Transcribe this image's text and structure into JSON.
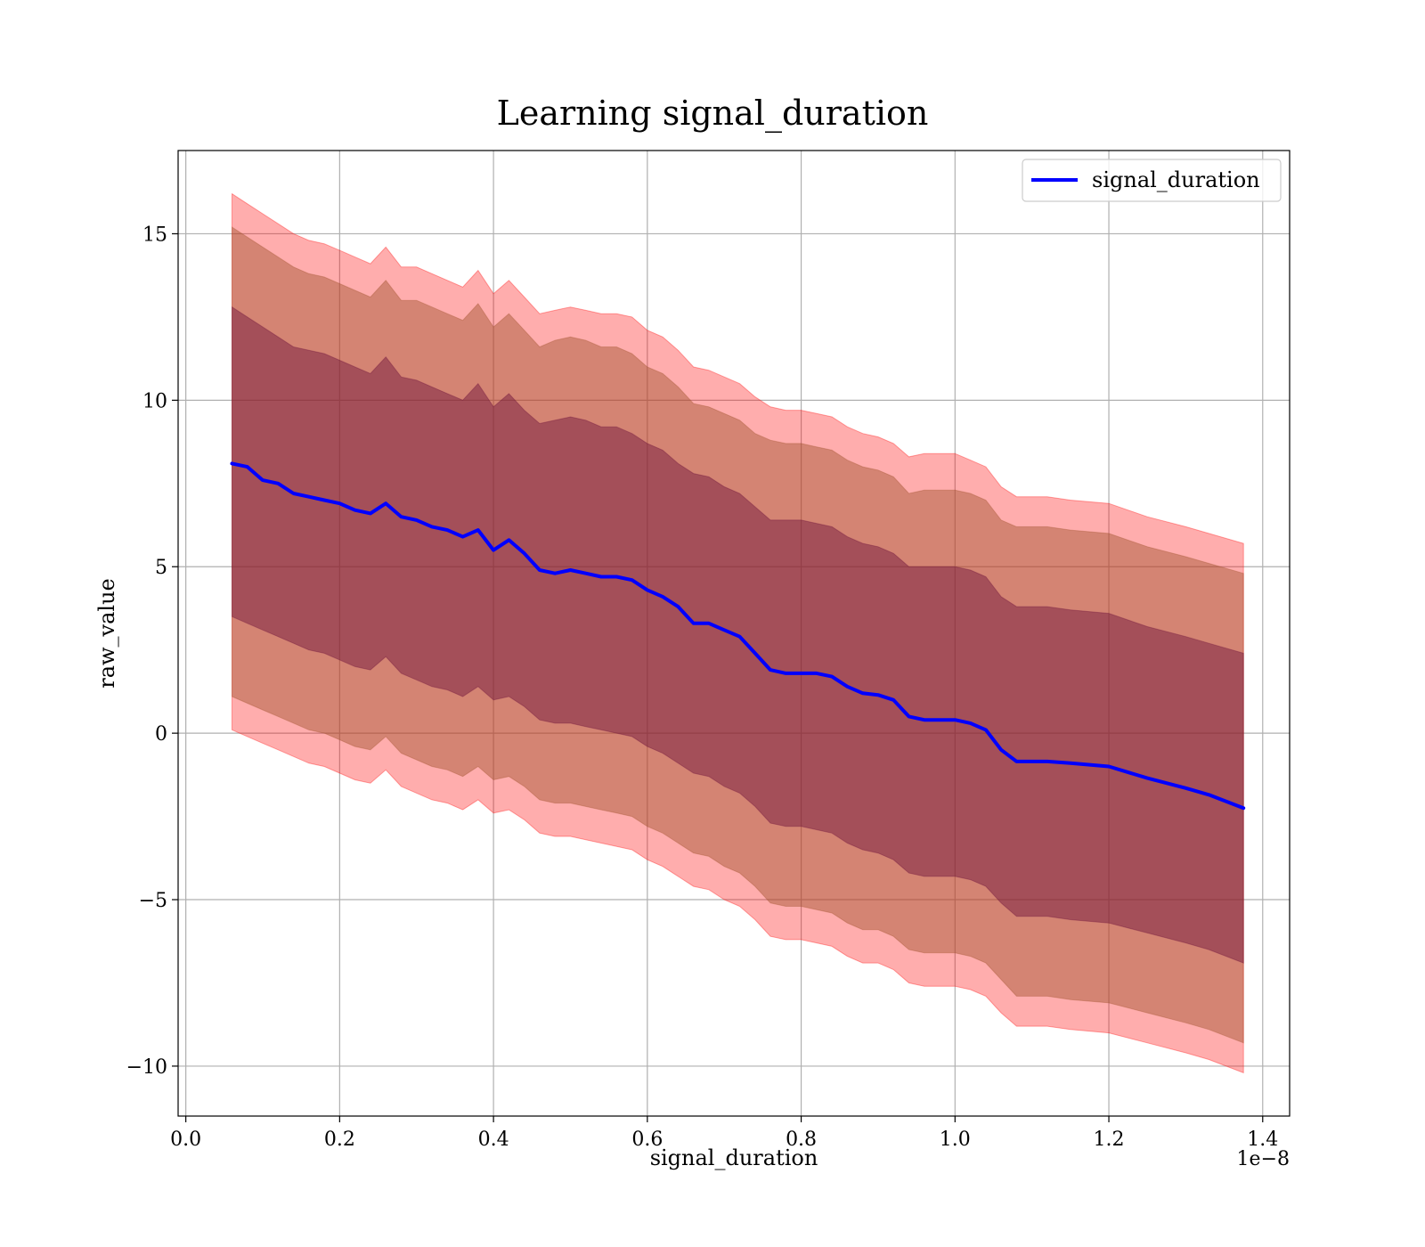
{
  "chart_data": {
    "type": "line",
    "title": "Learning signal_duration",
    "xlabel": "signal_duration",
    "ylabel": "raw_value",
    "x_offset_label": "1e−8",
    "xlim": [
      -0.01,
      1.435
    ],
    "ylim": [
      -11.5,
      17.5
    ],
    "xticks": [
      0.0,
      0.2,
      0.4,
      0.6,
      0.8,
      1.0,
      1.2,
      1.4
    ],
    "xtick_labels": [
      "0.0",
      "0.2",
      "0.4",
      "0.6",
      "0.8",
      "1.0",
      "1.2",
      "1.4"
    ],
    "yticks": [
      -10,
      -5,
      0,
      5,
      10,
      15
    ],
    "ytick_labels": [
      "−10",
      "−5",
      "0",
      "5",
      "10",
      "15"
    ],
    "grid": true,
    "legend": {
      "position": "top-right",
      "entries": [
        "signal_duration"
      ]
    },
    "series": [
      {
        "name": "signal_duration",
        "color": "#0000ff",
        "x": [
          0.06,
          0.08,
          0.1,
          0.12,
          0.14,
          0.16,
          0.18,
          0.2,
          0.22,
          0.24,
          0.26,
          0.28,
          0.3,
          0.32,
          0.34,
          0.36,
          0.38,
          0.4,
          0.42,
          0.44,
          0.46,
          0.48,
          0.5,
          0.52,
          0.54,
          0.56,
          0.58,
          0.6,
          0.62,
          0.64,
          0.66,
          0.68,
          0.7,
          0.72,
          0.74,
          0.76,
          0.78,
          0.8,
          0.82,
          0.84,
          0.86,
          0.88,
          0.9,
          0.92,
          0.94,
          0.96,
          0.98,
          1.0,
          1.02,
          1.04,
          1.06,
          1.08,
          1.1,
          1.12,
          1.15,
          1.2,
          1.25,
          1.3,
          1.33,
          1.375
        ],
        "y": [
          8.1,
          8.0,
          7.6,
          7.5,
          7.2,
          7.1,
          7.0,
          6.9,
          6.7,
          6.6,
          6.9,
          6.5,
          6.4,
          6.2,
          6.1,
          5.9,
          6.1,
          5.5,
          5.8,
          5.4,
          4.9,
          4.8,
          4.9,
          4.8,
          4.7,
          4.7,
          4.6,
          4.3,
          4.1,
          3.8,
          3.3,
          3.3,
          3.1,
          2.9,
          2.4,
          1.9,
          1.8,
          1.8,
          1.8,
          1.7,
          1.4,
          1.2,
          1.15,
          1.0,
          0.5,
          0.4,
          0.4,
          0.4,
          0.3,
          0.1,
          -0.5,
          -0.85,
          -0.85,
          -0.85,
          -0.9,
          -1.0,
          -1.35,
          -1.65,
          -1.85,
          -2.25
        ]
      }
    ],
    "bands": [
      {
        "color": "#ff0000",
        "opacity": 0.32,
        "upper": [
          16.2,
          15.9,
          15.6,
          15.3,
          15.0,
          14.8,
          14.7,
          14.5,
          14.3,
          14.1,
          14.6,
          14.0,
          14.0,
          13.8,
          13.6,
          13.4,
          13.9,
          13.2,
          13.6,
          13.1,
          12.6,
          12.7,
          12.8,
          12.7,
          12.6,
          12.6,
          12.5,
          12.1,
          11.9,
          11.5,
          11.0,
          10.9,
          10.7,
          10.5,
          10.1,
          9.8,
          9.7,
          9.7,
          9.6,
          9.5,
          9.2,
          9.0,
          8.9,
          8.7,
          8.3,
          8.4,
          8.4,
          8.4,
          8.2,
          8.0,
          7.4,
          7.1,
          7.1,
          7.1,
          7.0,
          6.9,
          6.5,
          6.2,
          6.0,
          5.7
        ],
        "lower": [
          0.1,
          -0.1,
          -0.3,
          -0.5,
          -0.7,
          -0.9,
          -1.0,
          -1.2,
          -1.4,
          -1.5,
          -1.1,
          -1.6,
          -1.8,
          -2.0,
          -2.1,
          -2.3,
          -2.0,
          -2.4,
          -2.3,
          -2.6,
          -3.0,
          -3.1,
          -3.1,
          -3.2,
          -3.3,
          -3.4,
          -3.5,
          -3.8,
          -4.0,
          -4.3,
          -4.6,
          -4.7,
          -5.0,
          -5.2,
          -5.6,
          -6.1,
          -6.2,
          -6.2,
          -6.3,
          -6.4,
          -6.7,
          -6.9,
          -6.9,
          -7.1,
          -7.5,
          -7.6,
          -7.6,
          -7.6,
          -7.7,
          -7.9,
          -8.4,
          -8.8,
          -8.8,
          -8.8,
          -8.9,
          -9.0,
          -9.3,
          -9.6,
          -9.8,
          -10.2
        ]
      },
      {
        "color": "#a0522d",
        "opacity": 0.45,
        "upper": [
          15.2,
          14.9,
          14.6,
          14.3,
          14.0,
          13.8,
          13.7,
          13.5,
          13.3,
          13.1,
          13.6,
          13.0,
          13.0,
          12.8,
          12.6,
          12.4,
          12.9,
          12.2,
          12.6,
          12.1,
          11.6,
          11.8,
          11.9,
          11.8,
          11.6,
          11.6,
          11.4,
          11.0,
          10.8,
          10.4,
          9.9,
          9.8,
          9.6,
          9.4,
          9.0,
          8.8,
          8.7,
          8.7,
          8.6,
          8.5,
          8.2,
          8.0,
          7.9,
          7.7,
          7.2,
          7.3,
          7.3,
          7.3,
          7.2,
          7.0,
          6.4,
          6.2,
          6.2,
          6.2,
          6.1,
          6.0,
          5.6,
          5.3,
          5.1,
          4.8
        ],
        "lower": [
          1.1,
          0.9,
          0.7,
          0.5,
          0.3,
          0.1,
          0.0,
          -0.2,
          -0.4,
          -0.5,
          -0.1,
          -0.6,
          -0.8,
          -1.0,
          -1.1,
          -1.3,
          -1.0,
          -1.4,
          -1.3,
          -1.6,
          -2.0,
          -2.1,
          -2.1,
          -2.2,
          -2.3,
          -2.4,
          -2.5,
          -2.8,
          -3.0,
          -3.3,
          -3.6,
          -3.7,
          -4.0,
          -4.2,
          -4.6,
          -5.1,
          -5.2,
          -5.2,
          -5.3,
          -5.4,
          -5.7,
          -5.9,
          -5.9,
          -6.1,
          -6.5,
          -6.6,
          -6.6,
          -6.6,
          -6.7,
          -6.9,
          -7.4,
          -7.9,
          -7.9,
          -7.9,
          -8.0,
          -8.1,
          -8.4,
          -8.7,
          -8.9,
          -9.3
        ]
      },
      {
        "color": "#6b0f3a",
        "opacity": 0.45,
        "upper": [
          12.8,
          12.5,
          12.2,
          11.9,
          11.6,
          11.5,
          11.4,
          11.2,
          11.0,
          10.8,
          11.3,
          10.7,
          10.6,
          10.4,
          10.2,
          10.0,
          10.5,
          9.8,
          10.2,
          9.7,
          9.3,
          9.4,
          9.5,
          9.4,
          9.2,
          9.2,
          9.0,
          8.7,
          8.5,
          8.1,
          7.8,
          7.7,
          7.4,
          7.2,
          6.8,
          6.4,
          6.4,
          6.4,
          6.3,
          6.2,
          5.9,
          5.7,
          5.6,
          5.4,
          5.0,
          5.0,
          5.0,
          5.0,
          4.9,
          4.7,
          4.1,
          3.8,
          3.8,
          3.8,
          3.7,
          3.6,
          3.2,
          2.9,
          2.7,
          2.4
        ],
        "lower": [
          3.5,
          3.3,
          3.1,
          2.9,
          2.7,
          2.5,
          2.4,
          2.2,
          2.0,
          1.9,
          2.3,
          1.8,
          1.6,
          1.4,
          1.3,
          1.1,
          1.4,
          1.0,
          1.1,
          0.8,
          0.4,
          0.3,
          0.3,
          0.2,
          0.1,
          0.0,
          -0.1,
          -0.4,
          -0.6,
          -0.9,
          -1.2,
          -1.3,
          -1.6,
          -1.8,
          -2.2,
          -2.7,
          -2.8,
          -2.8,
          -2.9,
          -3.0,
          -3.3,
          -3.5,
          -3.6,
          -3.8,
          -4.2,
          -4.3,
          -4.3,
          -4.3,
          -4.4,
          -4.6,
          -5.1,
          -5.5,
          -5.5,
          -5.5,
          -5.6,
          -5.7,
          -6.0,
          -6.3,
          -6.5,
          -6.9
        ]
      }
    ]
  }
}
